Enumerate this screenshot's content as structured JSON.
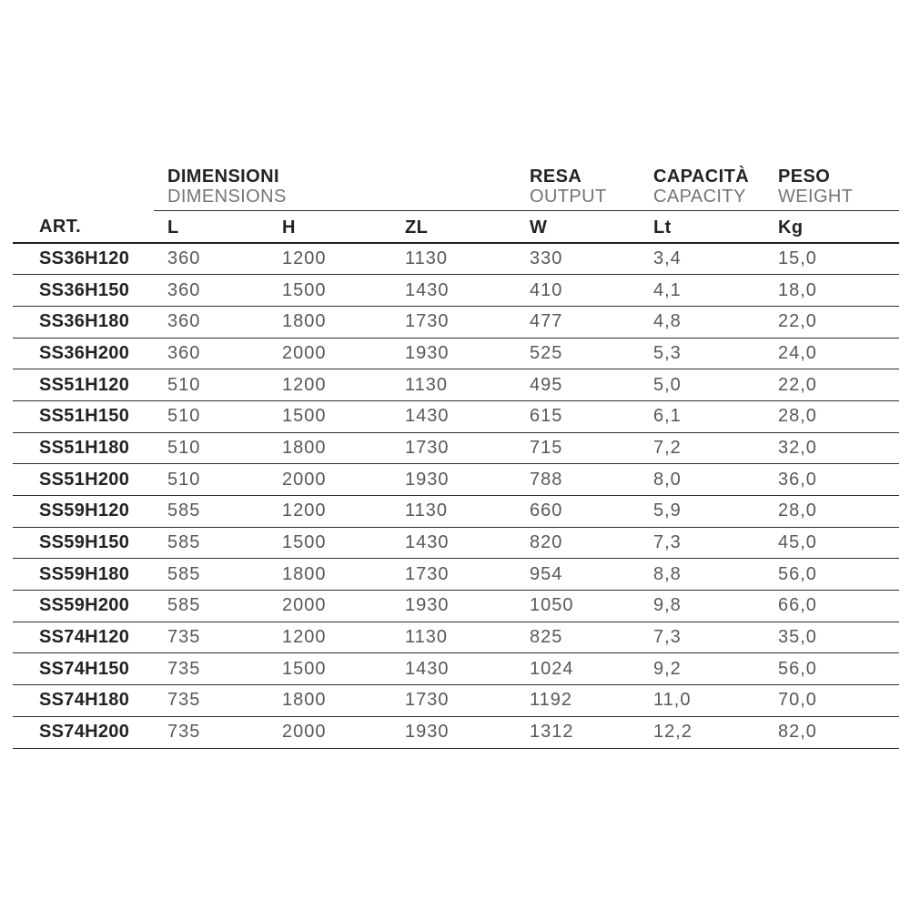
{
  "table": {
    "header_groups": [
      {
        "id": "dimensions",
        "primary": "DIMENSIONI",
        "secondary": "DIMENSIONS",
        "span": 3
      },
      {
        "id": "output",
        "primary": "RESA",
        "secondary": "OUTPUT",
        "span": 1
      },
      {
        "id": "capacity",
        "primary": "CAPACITÀ",
        "secondary": "CAPACITY",
        "span": 1
      },
      {
        "id": "weight",
        "primary": "PESO",
        "secondary": "WEIGHT",
        "span": 1
      }
    ],
    "columns": [
      "ART.",
      "L",
      "H",
      "ZL",
      "W",
      "Lt",
      "Kg"
    ],
    "rows": [
      [
        "SS36H120",
        "360",
        "1200",
        "1130",
        "330",
        "3,4",
        "15,0"
      ],
      [
        "SS36H150",
        "360",
        "1500",
        "1430",
        "410",
        "4,1",
        "18,0"
      ],
      [
        "SS36H180",
        "360",
        "1800",
        "1730",
        "477",
        "4,8",
        "22,0"
      ],
      [
        "SS36H200",
        "360",
        "2000",
        "1930",
        "525",
        "5,3",
        "24,0"
      ],
      [
        "SS51H120",
        "510",
        "1200",
        "1130",
        "495",
        "5,0",
        "22,0"
      ],
      [
        "SS51H150",
        "510",
        "1500",
        "1430",
        "615",
        "6,1",
        "28,0"
      ],
      [
        "SS51H180",
        "510",
        "1800",
        "1730",
        "715",
        "7,2",
        "32,0"
      ],
      [
        "SS51H200",
        "510",
        "2000",
        "1930",
        "788",
        "8,0",
        "36,0"
      ],
      [
        "SS59H120",
        "585",
        "1200",
        "1130",
        "660",
        "5,9",
        "28,0"
      ],
      [
        "SS59H150",
        "585",
        "1500",
        "1430",
        "820",
        "7,3",
        "45,0"
      ],
      [
        "SS59H180",
        "585",
        "1800",
        "1730",
        "954",
        "8,8",
        "56,0"
      ],
      [
        "SS59H200",
        "585",
        "2000",
        "1930",
        "1050",
        "9,8",
        "66,0"
      ],
      [
        "SS74H120",
        "735",
        "1200",
        "1130",
        "825",
        "7,3",
        "35,0"
      ],
      [
        "SS74H150",
        "735",
        "1500",
        "1430",
        "1024",
        "9,2",
        "56,0"
      ],
      [
        "SS74H180",
        "735",
        "1800",
        "1730",
        "1192",
        "11,0",
        "70,0"
      ],
      [
        "SS74H200",
        "735",
        "2000",
        "1930",
        "1312",
        "12,2",
        "82,0"
      ]
    ]
  },
  "colors": {
    "text_dark": "#232325",
    "text_value_gray": "#58585b",
    "text_secondary_gray": "#737478",
    "rule_line": "#2e2e31",
    "background": "#ffffff"
  }
}
